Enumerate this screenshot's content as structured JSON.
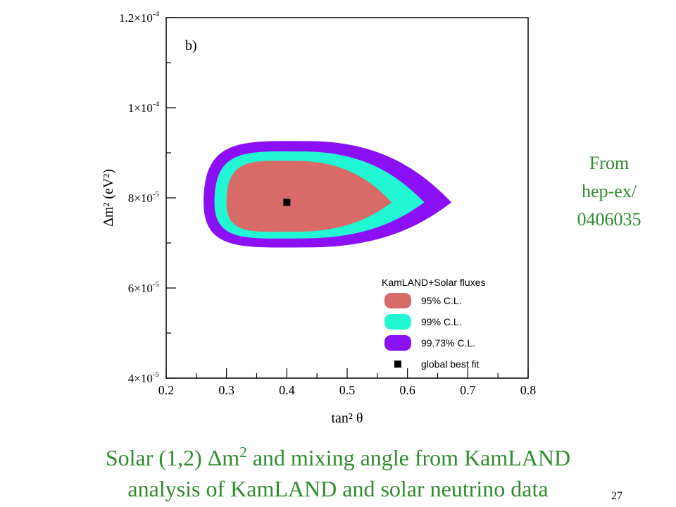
{
  "chart_data": {
    "type": "contour",
    "panel_label": "b)",
    "xlabel": "tan² θ",
    "ylabel": "Δm² (eV²)",
    "xlim": [
      0.2,
      0.8
    ],
    "ylim": [
      4e-05,
      0.00012
    ],
    "x_ticks": [
      0.2,
      0.3,
      0.4,
      0.5,
      0.6,
      0.7,
      0.8
    ],
    "x_tick_labels": [
      "0.2",
      "0.3",
      "0.4",
      "0.5",
      "0.6",
      "0.7",
      "0.8"
    ],
    "y_ticks": [
      4e-05,
      6e-05,
      8e-05,
      0.0001,
      0.00012
    ],
    "y_tick_labels": [
      {
        "mant": "4×10",
        "exp": "-5"
      },
      {
        "mant": "6×10",
        "exp": "-5"
      },
      {
        "mant": "8×10",
        "exp": "-5"
      },
      {
        "mant": "1×10",
        "exp": "-4"
      },
      {
        "mant": "1.2×10",
        "exp": "-4"
      }
    ],
    "regions": [
      {
        "name": "99.73% C.L.",
        "color": "#8b10f5",
        "x_min": 0.262,
        "x_max": 0.673,
        "y_min": 6.9e-05,
        "y_max": 9.26e-05,
        "y_center": 7.9e-05
      },
      {
        "name": "99% C.L.",
        "color": "#22f7d4",
        "x_min": 0.28,
        "x_max": 0.628,
        "y_min": 7.1e-05,
        "y_max": 9.03e-05,
        "y_center": 7.9e-05
      },
      {
        "name": "95% C.L.",
        "color": "#d86a68",
        "x_min": 0.3,
        "x_max": 0.574,
        "y_min": 7.25e-05,
        "y_max": 8.82e-05,
        "y_center": 7.9e-05
      }
    ],
    "best_fit": {
      "name": "global best fit",
      "x": 0.4,
      "y": 7.9e-05
    },
    "legend": {
      "title": "KamLAND+Solar fluxes",
      "position": "bottom-right",
      "items": [
        {
          "label": "95% C.L.",
          "color": "#d86a68"
        },
        {
          "label": "99% C.L.",
          "color": "#22f7d4"
        },
        {
          "label": "99.73% C.L.",
          "color": "#8b10f5"
        },
        {
          "label": "global best fit",
          "color": "#000000"
        }
      ]
    }
  },
  "side_note": {
    "lines": [
      "From",
      "hep-ex/",
      "0406035"
    ]
  },
  "caption": {
    "line1_pre": "Solar (1,2) Δm",
    "line1_sup": "2",
    "line1_post": " and mixing angle from KamLAND",
    "line2": "analysis of KamLAND and solar neutrino data"
  },
  "slide_number": "27",
  "colors": {
    "text_accent": "#2e8b2e",
    "frame": "#000000"
  }
}
